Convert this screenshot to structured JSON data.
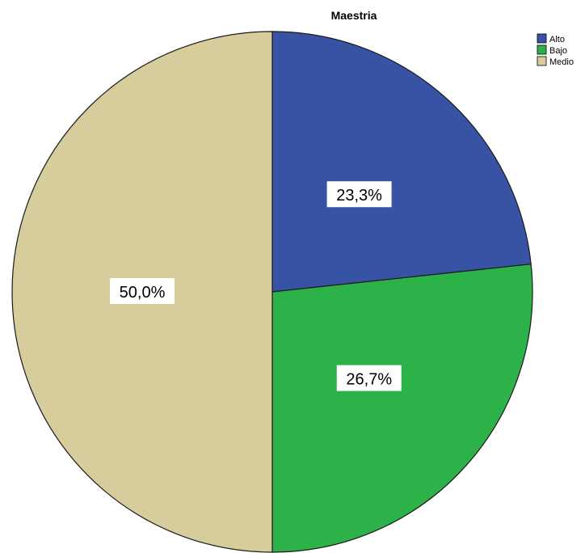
{
  "chart_data": {
    "type": "pie",
    "title": "Maestria",
    "slices": [
      {
        "label": "Alto",
        "value": 23.3,
        "display": "23,3%",
        "color": "#3953a4"
      },
      {
        "label": "Bajo",
        "value": 26.7,
        "display": "26,7%",
        "color": "#2db24a"
      },
      {
        "label": "Medio",
        "value": 50.0,
        "display": "50,0%",
        "color": "#d6cc9c"
      }
    ],
    "start_angle_deg": 0,
    "direction": "clockwise",
    "legend_position": "top-right"
  }
}
